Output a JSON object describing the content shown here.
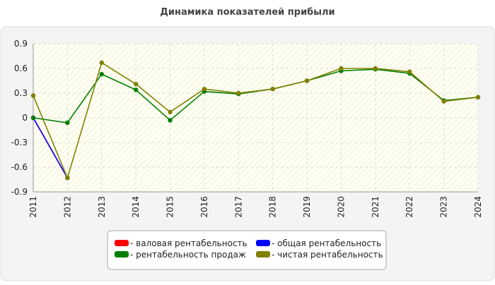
{
  "chart_data": {
    "type": "line",
    "title": "Динамика показателей прибыли",
    "categories": [
      "2011",
      "2012",
      "2013",
      "2014",
      "2015",
      "2016",
      "2017",
      "2018",
      "2019",
      "2020",
      "2021",
      "2022",
      "2023",
      "2024"
    ],
    "series": [
      {
        "name": "- валовая рентабельность",
        "color": "#ff0000",
        "values": [
          0,
          -0.73,
          null,
          null,
          null,
          null,
          null,
          null,
          null,
          null,
          null,
          null,
          null,
          null
        ]
      },
      {
        "name": "- общая рентабельность",
        "color": "#0000ff",
        "values": [
          0,
          -0.73,
          null,
          null,
          null,
          null,
          null,
          null,
          null,
          null,
          null,
          null,
          null,
          null
        ]
      },
      {
        "name": "- рентабельность продаж",
        "color": "#008000",
        "values": [
          0,
          -0.06,
          0.53,
          0.34,
          -0.03,
          0.32,
          0.29,
          0.35,
          0.45,
          0.57,
          0.59,
          0.54,
          0.21,
          0.25
        ]
      },
      {
        "name": "- чистая рентабельность",
        "color": "#808000",
        "values": [
          0.27,
          -0.73,
          0.67,
          0.41,
          0.07,
          0.35,
          0.3,
          0.35,
          0.45,
          0.6,
          0.6,
          0.56,
          0.2,
          0.25
        ]
      }
    ],
    "ylim": [
      -0.9,
      0.9
    ],
    "yticks": [
      -0.9,
      -0.6,
      -0.3,
      0,
      0.3,
      0.6,
      0.9
    ],
    "grid": true,
    "legend": "bottom"
  }
}
